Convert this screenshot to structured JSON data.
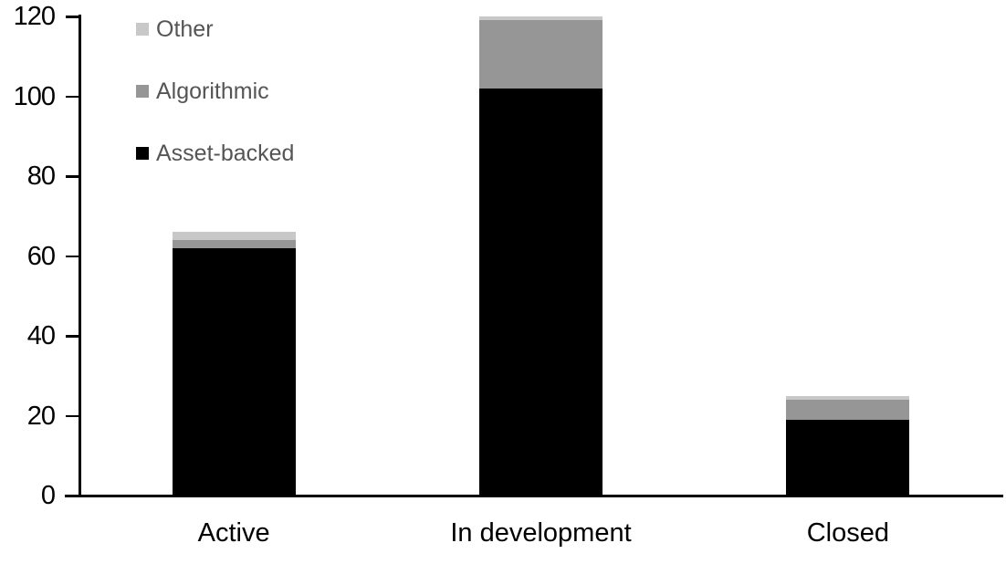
{
  "chart_data": {
    "type": "bar",
    "stacked": true,
    "title": "",
    "xlabel": "",
    "ylabel": "",
    "categories": [
      "Active",
      "In development",
      "Closed"
    ],
    "series": [
      {
        "name": "Asset-backed",
        "color": "#000000",
        "values": [
          62,
          102,
          19
        ]
      },
      {
        "name": "Algorithmic",
        "color": "#969696",
        "values": [
          2,
          17,
          5
        ]
      },
      {
        "name": "Other",
        "color": "#c8c8c8",
        "values": [
          2,
          1,
          1
        ]
      }
    ],
    "totals": [
      66,
      120,
      25
    ],
    "ylim": [
      0,
      120
    ],
    "yticks": [
      0,
      20,
      40,
      60,
      80,
      100,
      120
    ],
    "grid": false,
    "legend_position": "top-left-inside",
    "legend_order": [
      "Other",
      "Algorithmic",
      "Asset-backed"
    ]
  },
  "colors": {
    "background": "#ffffff",
    "axis": "#000000",
    "tick_label_text": "#000000",
    "category_label_text": "#000000",
    "legend_text": "#555555"
  }
}
